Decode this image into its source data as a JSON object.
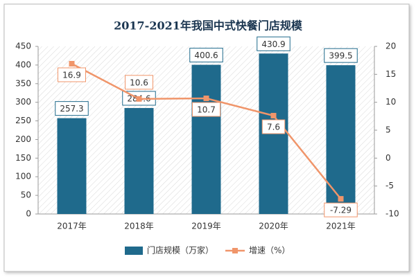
{
  "chart_data": {
    "type": "bar",
    "title": "2017-2021年我国中式快餐门店规模",
    "categories": [
      "2017年",
      "2018年",
      "2019年",
      "2020年",
      "2021年"
    ],
    "series": [
      {
        "name": "门店规模（万家）",
        "type": "bar",
        "color": "#1f6a8c",
        "values": [
          257.3,
          284.6,
          400.6,
          430.9,
          399.5
        ]
      },
      {
        "name": "增速（%）",
        "type": "line",
        "axis": "y2",
        "color": "#f0956a",
        "values": [
          16.9,
          10.6,
          10.7,
          7.6,
          -7.29
        ]
      }
    ],
    "ylim": [
      0,
      450
    ],
    "yticks": [
      0,
      50,
      100,
      150,
      200,
      250,
      300,
      350,
      400,
      450
    ],
    "y2lim": [
      -10,
      20
    ],
    "y2ticks": [
      -10,
      -5,
      0,
      5,
      10,
      15,
      20
    ],
    "legend": "bottom"
  }
}
